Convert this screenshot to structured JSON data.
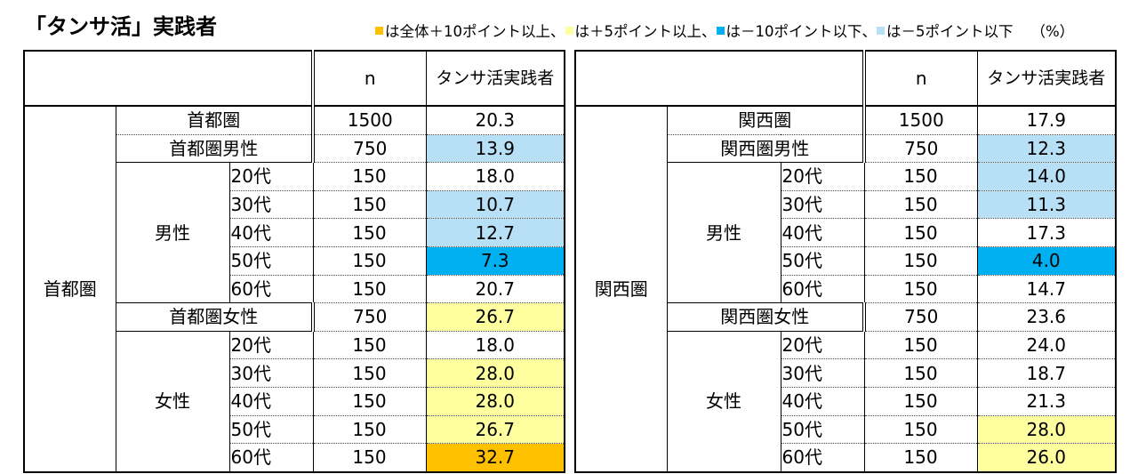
{
  "title": "「タンサ活」実践者",
  "legend": [
    {
      "color": "#ffc000",
      "text": "は全体＋10ポイント以上、"
    },
    {
      "color": "#ffffa0",
      "text": "は＋5ポイント以上、"
    },
    {
      "color": "#00b0f0",
      "text": "は－10ポイント以下、"
    },
    {
      "color": "#b7dff5",
      "text": "は－5ポイント以下"
    }
  ],
  "unit": "（%）",
  "colors": {
    "plus10": "#ffc000",
    "plus5": "#ffffa0",
    "minus10": "#00b0f0",
    "minus5": "#b7dff5"
  },
  "tables": [
    {
      "region": "首都圏",
      "header_n": "n",
      "header_col": "タンサ活実践者",
      "total": {
        "label": "首都圏",
        "n": "1500",
        "value": "20.3",
        "hl": ""
      },
      "groups": [
        {
          "label": "首都圏男性",
          "n": "750",
          "value": "13.9",
          "hl": "minus5",
          "sex": "男性",
          "ages": [
            {
              "age": "20代",
              "n": "150",
              "value": "18.0",
              "hl": ""
            },
            {
              "age": "30代",
              "n": "150",
              "value": "10.7",
              "hl": "minus5"
            },
            {
              "age": "40代",
              "n": "150",
              "value": "12.7",
              "hl": "minus5"
            },
            {
              "age": "50代",
              "n": "150",
              "value": "7.3",
              "hl": "minus10"
            },
            {
              "age": "60代",
              "n": "150",
              "value": "20.7",
              "hl": ""
            }
          ]
        },
        {
          "label": "首都圏女性",
          "n": "750",
          "value": "26.7",
          "hl": "plus5",
          "sex": "女性",
          "ages": [
            {
              "age": "20代",
              "n": "150",
              "value": "18.0",
              "hl": ""
            },
            {
              "age": "30代",
              "n": "150",
              "value": "28.0",
              "hl": "plus5"
            },
            {
              "age": "40代",
              "n": "150",
              "value": "28.0",
              "hl": "plus5"
            },
            {
              "age": "50代",
              "n": "150",
              "value": "26.7",
              "hl": "plus5"
            },
            {
              "age": "60代",
              "n": "150",
              "value": "32.7",
              "hl": "plus10"
            }
          ]
        }
      ]
    },
    {
      "region": "関西圏",
      "header_n": "n",
      "header_col": "タンサ活実践者",
      "total": {
        "label": "関西圏",
        "n": "1500",
        "value": "17.9",
        "hl": ""
      },
      "groups": [
        {
          "label": "関西圏男性",
          "n": "750",
          "value": "12.3",
          "hl": "minus5",
          "sex": "男性",
          "ages": [
            {
              "age": "20代",
              "n": "150",
              "value": "14.0",
              "hl": "minus5"
            },
            {
              "age": "30代",
              "n": "150",
              "value": "11.3",
              "hl": "minus5"
            },
            {
              "age": "40代",
              "n": "150",
              "value": "17.3",
              "hl": ""
            },
            {
              "age": "50代",
              "n": "150",
              "value": "4.0",
              "hl": "minus10"
            },
            {
              "age": "60代",
              "n": "150",
              "value": "14.7",
              "hl": ""
            }
          ]
        },
        {
          "label": "関西圏女性",
          "n": "750",
          "value": "23.6",
          "hl": "",
          "sex": "女性",
          "ages": [
            {
              "age": "20代",
              "n": "150",
              "value": "24.0",
              "hl": ""
            },
            {
              "age": "30代",
              "n": "150",
              "value": "18.7",
              "hl": ""
            },
            {
              "age": "40代",
              "n": "150",
              "value": "21.3",
              "hl": ""
            },
            {
              "age": "50代",
              "n": "150",
              "value": "28.0",
              "hl": "plus5"
            },
            {
              "age": "60代",
              "n": "150",
              "value": "26.0",
              "hl": "plus5"
            }
          ]
        }
      ]
    }
  ]
}
